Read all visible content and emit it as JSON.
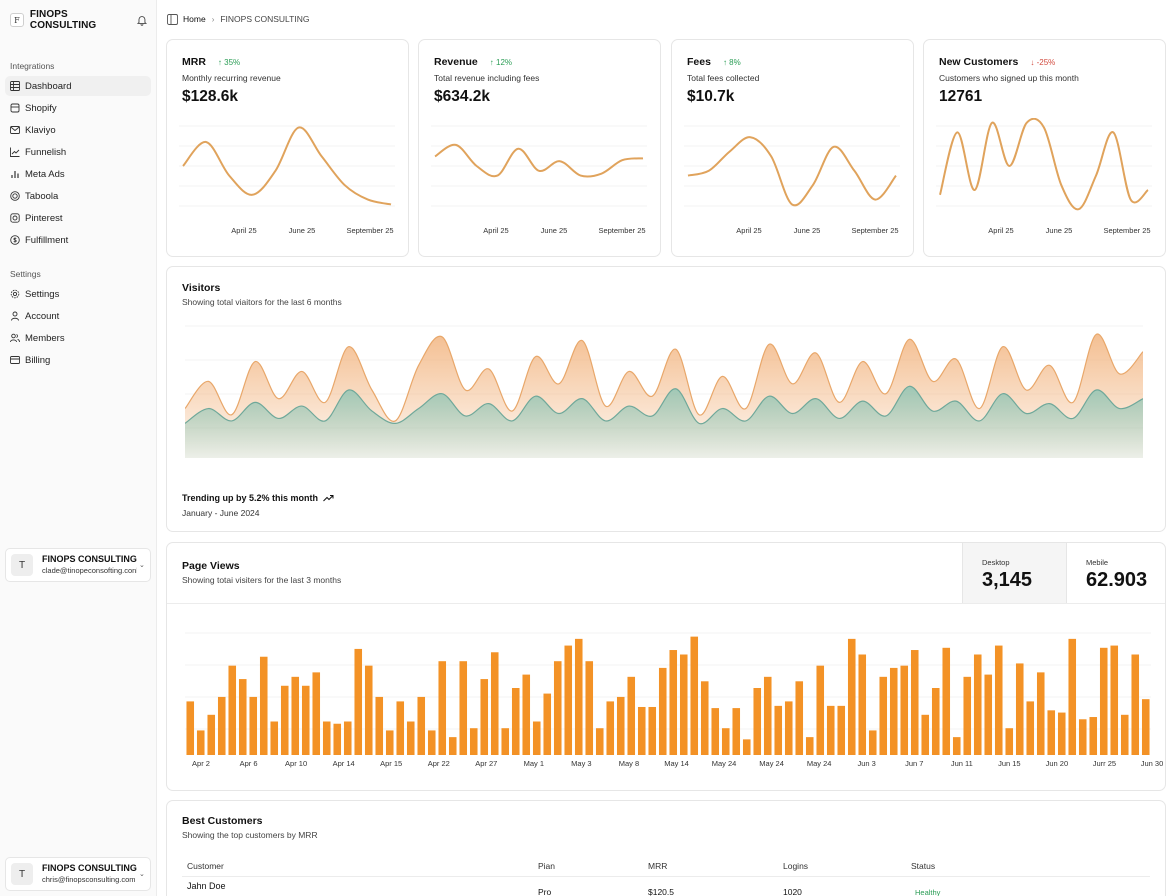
{
  "brand": {
    "logo_letter": "F",
    "name": "FINOPS CONSULTING"
  },
  "sidebar": {
    "integrations_label": "Integrations",
    "integrations": [
      {
        "label": "Dashboard",
        "icon": "grid-icon",
        "active": true
      },
      {
        "label": "Shopify",
        "icon": "bag-icon"
      },
      {
        "label": "Klaviyo",
        "icon": "mail-icon"
      },
      {
        "label": "Funnelish",
        "icon": "chart-line-icon"
      },
      {
        "label": "Meta Ads",
        "icon": "bar-chart-icon"
      },
      {
        "label": "Taboola",
        "icon": "globe-icon"
      },
      {
        "label": "Pinterest",
        "icon": "pin-icon"
      },
      {
        "label": "Fulfillment",
        "icon": "dollar-circle-icon"
      }
    ],
    "settings_label": "Settings",
    "settings": [
      {
        "label": "Settings",
        "icon": "gear-icon"
      },
      {
        "label": "Account",
        "icon": "user-icon"
      },
      {
        "label": "Members",
        "icon": "users-icon"
      },
      {
        "label": "Billing",
        "icon": "card-icon"
      }
    ],
    "user_cards": [
      {
        "avatar": "T",
        "name": "FINOPS CONSULTING",
        "email": "clade@tinopeconsofting.conl"
      },
      {
        "avatar": "T",
        "name": "FINOPS CONSULTING",
        "email": "chris@finopsconsulting.com"
      }
    ]
  },
  "breadcrumb": {
    "home": "Home",
    "current": "FINOPS CONSULTING"
  },
  "kpis": [
    {
      "title": "MRR",
      "delta": "35%",
      "direction": "up",
      "subtitle": "Monthly recurring revenue",
      "value": "$128.6k"
    },
    {
      "title": "Revenue",
      "delta": "12%",
      "direction": "up",
      "subtitle": "Total revenue including fees",
      "value": "$634.2k"
    },
    {
      "title": "Fees",
      "delta": "8%",
      "direction": "up",
      "subtitle": "Total fees collected",
      "value": "$10.7k"
    },
    {
      "title": "New Customers",
      "delta": "-25%",
      "direction": "down",
      "subtitle": "Customers who signed up this month",
      "value": "12761"
    }
  ],
  "visitors": {
    "title": "Visitors",
    "subtitle": "Showing total viaitors for the last 6 months",
    "trend_text": "Trending up by 5.2% this month",
    "range": "January - June 2024"
  },
  "page_views": {
    "title": "Page Views",
    "subtitle": "Showing totai visiters for the last 3 months",
    "desktop_label": "Desktop",
    "desktop_value": "3,145",
    "mobile_label": "Mebile",
    "mobile_value": "62.903"
  },
  "best_customers": {
    "title": "Best Customers",
    "subtitle": "Showing the top customers by MRR",
    "columns": [
      "Customer",
      "Pian",
      "MRR",
      "Logins",
      "Status"
    ],
    "rows": [
      {
        "customer": "Jahn Doe",
        "plan": "Pro",
        "mrr": "$120.5",
        "logins": "1020",
        "status": "Healthy"
      }
    ]
  },
  "chart_data": [
    {
      "type": "line",
      "title": "MRR",
      "x_tick_labels": [
        "April 25",
        "June 25",
        "September 25"
      ],
      "series": [
        {
          "name": "MRR",
          "values": [
            50,
            75,
            40,
            20,
            45,
            90,
            60,
            30,
            15,
            10
          ]
        }
      ],
      "ylim": [
        0,
        100
      ],
      "color": "#e0a35c"
    },
    {
      "type": "line",
      "title": "Revenue",
      "x_tick_labels": [
        "April 25",
        "June 25",
        "September 25"
      ],
      "series": [
        {
          "name": "Revenue",
          "values": [
            60,
            72,
            50,
            40,
            68,
            45,
            55,
            40,
            42,
            56,
            58
          ]
        }
      ],
      "ylim": [
        0,
        100
      ],
      "color": "#e0a35c"
    },
    {
      "type": "line",
      "title": "Fees",
      "x_tick_labels": [
        "April 25",
        "June 25",
        "September 25"
      ],
      "series": [
        {
          "name": "Fees",
          "values": [
            40,
            45,
            65,
            80,
            60,
            10,
            30,
            70,
            45,
            15,
            40
          ]
        }
      ],
      "ylim": [
        0,
        100
      ],
      "color": "#e0a35c"
    },
    {
      "type": "line",
      "title": "New Customers",
      "x_tick_labels": [
        "April 25",
        "June 25",
        "September 25"
      ],
      "series": [
        {
          "name": "New Customers",
          "values": [
            20,
            85,
            25,
            95,
            50,
            95,
            90,
            30,
            5,
            40,
            85,
            15,
            25
          ]
        }
      ],
      "ylim": [
        0,
        100
      ],
      "color": "#e0a35c"
    },
    {
      "type": "area",
      "title": "Visitors",
      "series": [
        {
          "name": "desktop",
          "values": [
            40,
            62,
            35,
            78,
            48,
            70,
            45,
            90,
            55,
            30,
            75,
            98,
            55,
            72,
            38,
            82,
            60,
            95,
            42,
            70,
            50,
            88,
            35,
            66,
            40,
            92,
            60,
            85,
            45,
            78,
            52,
            96,
            62,
            80,
            40,
            90,
            55,
            75,
            45,
            100,
            68,
            86
          ]
        },
        {
          "name": "mobile",
          "values": [
            28,
            40,
            30,
            45,
            32,
            42,
            30,
            55,
            38,
            28,
            40,
            52,
            34,
            44,
            30,
            50,
            36,
            48,
            30,
            42,
            34,
            56,
            28,
            40,
            30,
            50,
            36,
            48,
            32,
            46,
            34,
            58,
            38,
            46,
            30,
            52,
            36,
            44,
            32,
            55,
            40,
            48
          ]
        }
      ],
      "colors": {
        "desktop": "#f2b47f",
        "mobile": "#8fc5b5"
      },
      "ylim": [
        0,
        110
      ]
    },
    {
      "type": "bar",
      "title": "Page Views",
      "x_tick_labels": [
        "Apr 2",
        "Apr 6",
        "Apr 10",
        "Apr 14",
        "Apr 15",
        "Apr 22",
        "Apr 27",
        "May 1",
        "May 3",
        "May 8",
        "May 14",
        "May 24",
        "May 24",
        "May 24",
        "Jun 3",
        "Jun 7",
        "Jun 11",
        "Jun 15",
        "Jun 20",
        "Jurr 25",
        "Jun 30"
      ],
      "values": [
        48,
        22,
        36,
        52,
        80,
        68,
        52,
        88,
        30,
        62,
        70,
        62,
        74,
        30,
        28,
        30,
        95,
        80,
        52,
        22,
        48,
        30,
        52,
        22,
        84,
        16,
        84,
        24,
        68,
        92,
        24,
        60,
        72,
        30,
        55,
        84,
        98,
        104,
        84,
        24,
        48,
        52,
        70,
        43,
        43,
        78,
        94,
        90,
        106,
        66,
        42,
        24,
        42,
        14,
        60,
        70,
        44,
        48,
        66,
        16,
        80,
        44,
        44,
        104,
        90,
        22,
        70,
        78,
        80,
        94,
        36,
        60,
        96,
        16,
        70,
        90,
        72,
        98,
        24,
        82,
        48,
        74,
        40,
        38,
        104,
        32,
        34,
        96,
        98,
        36,
        90,
        50
      ],
      "color": "#f39226",
      "ylim": [
        0,
        120
      ]
    }
  ]
}
